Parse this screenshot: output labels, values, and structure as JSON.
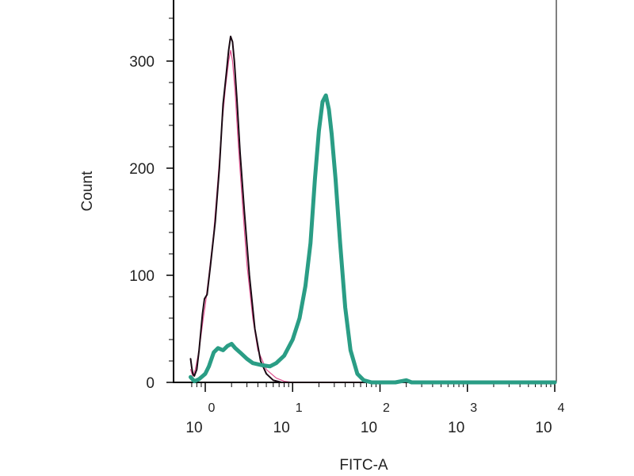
{
  "chart_data": {
    "type": "line",
    "title": "",
    "xlabel": "FITC-A",
    "ylabel": "Count",
    "x_scale": "log",
    "xlim": [
      0.68,
      10000
    ],
    "ylim": [
      0,
      360
    ],
    "grid": false,
    "legend": "none",
    "y_ticks": [
      {
        "value": 0,
        "label": "0"
      },
      {
        "value": 100,
        "label": "100"
      },
      {
        "value": 200,
        "label": "200"
      },
      {
        "value": 300,
        "label": "300"
      }
    ],
    "x_ticks": [
      {
        "value": 1,
        "base": "10",
        "exp": "0"
      },
      {
        "value": 10,
        "base": "10",
        "exp": "1"
      },
      {
        "value": 100,
        "base": "10",
        "exp": "2"
      },
      {
        "value": 1000,
        "base": "10",
        "exp": "3"
      },
      {
        "value": 10000,
        "base": "10",
        "exp": "4"
      }
    ],
    "series": [
      {
        "color": "#e0508f",
        "width": 1.2,
        "points": [
          [
            0.68,
            12
          ],
          [
            0.72,
            6
          ],
          [
            0.77,
            12
          ],
          [
            0.85,
            30
          ],
          [
            0.95,
            60
          ],
          [
            1.0,
            72
          ],
          [
            1.1,
            100
          ],
          [
            1.25,
            140
          ],
          [
            1.4,
            190
          ],
          [
            1.55,
            240
          ],
          [
            1.7,
            275
          ],
          [
            1.85,
            300
          ],
          [
            1.95,
            310
          ],
          [
            2.05,
            300
          ],
          [
            2.2,
            270
          ],
          [
            2.4,
            220
          ],
          [
            2.7,
            160
          ],
          [
            3.0,
            110
          ],
          [
            3.5,
            60
          ],
          [
            4.0,
            30
          ],
          [
            5.0,
            12
          ],
          [
            6.5,
            4
          ],
          [
            8.0,
            1
          ],
          [
            10,
            0
          ],
          [
            10000,
            0
          ]
        ]
      },
      {
        "color": "#1b0a14",
        "width": 2,
        "points": [
          [
            0.68,
            22
          ],
          [
            0.7,
            14
          ],
          [
            0.72,
            8
          ],
          [
            0.75,
            6
          ],
          [
            0.8,
            12
          ],
          [
            0.85,
            30
          ],
          [
            0.93,
            64
          ],
          [
            0.98,
            78
          ],
          [
            1.05,
            82
          ],
          [
            1.15,
            110
          ],
          [
            1.3,
            150
          ],
          [
            1.45,
            200
          ],
          [
            1.6,
            260
          ],
          [
            1.75,
            290
          ],
          [
            1.85,
            310
          ],
          [
            1.95,
            323
          ],
          [
            2.05,
            318
          ],
          [
            2.15,
            300
          ],
          [
            2.3,
            265
          ],
          [
            2.5,
            215
          ],
          [
            2.8,
            160
          ],
          [
            3.2,
            100
          ],
          [
            3.7,
            50
          ],
          [
            4.3,
            20
          ],
          [
            5.0,
            8
          ],
          [
            6.0,
            2
          ],
          [
            7.5,
            0
          ],
          [
            10000,
            0
          ]
        ]
      },
      {
        "color": "#2a9d85",
        "width": 5,
        "points": [
          [
            0.68,
            5
          ],
          [
            0.75,
            1
          ],
          [
            0.85,
            3
          ],
          [
            1.0,
            8
          ],
          [
            1.1,
            15
          ],
          [
            1.25,
            28
          ],
          [
            1.4,
            32
          ],
          [
            1.6,
            30
          ],
          [
            1.8,
            34
          ],
          [
            2.0,
            36
          ],
          [
            2.2,
            32
          ],
          [
            2.5,
            28
          ],
          [
            3.0,
            22
          ],
          [
            3.5,
            18
          ],
          [
            4.5,
            16
          ],
          [
            5.5,
            15
          ],
          [
            6.5,
            18
          ],
          [
            8.0,
            25
          ],
          [
            10,
            40
          ],
          [
            12,
            60
          ],
          [
            14,
            90
          ],
          [
            16,
            130
          ],
          [
            18,
            190
          ],
          [
            20,
            235
          ],
          [
            22,
            262
          ],
          [
            24,
            268
          ],
          [
            26,
            255
          ],
          [
            28,
            232
          ],
          [
            31,
            190
          ],
          [
            35,
            130
          ],
          [
            40,
            70
          ],
          [
            46,
            30
          ],
          [
            55,
            8
          ],
          [
            65,
            2
          ],
          [
            80,
            0
          ],
          [
            150,
            0
          ],
          [
            200,
            2
          ],
          [
            230,
            0
          ],
          [
            10000,
            0
          ]
        ]
      }
    ]
  }
}
